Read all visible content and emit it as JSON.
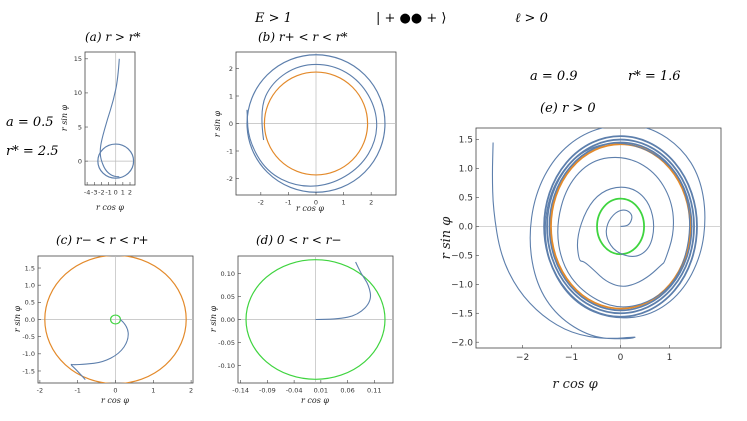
{
  "header": {
    "energy": "E > 1",
    "signature": "| + ●● + ⟩",
    "angular_momentum": "ℓ > 0"
  },
  "left_params": {
    "a": "a = 0.5",
    "r_star": "r* = 2.5"
  },
  "right_params": {
    "a": "a = 0.9",
    "r_star": "r* = 1.6"
  },
  "colors": {
    "trajectory": "#5d7fac",
    "outer_horizon": "#e38a2b",
    "inner_horizon": "#3fd43f",
    "axis": "#bbbbbb"
  },
  "chart_data": [
    {
      "id": "a",
      "type": "line",
      "title": "(a)    r > r*",
      "xlabel": "r cos φ",
      "ylabel": "r sin φ",
      "xlim": [
        -4.3,
        2.7
      ],
      "ylim": [
        -3.5,
        16
      ],
      "xticks": [
        -4,
        -3,
        -2,
        -1,
        0,
        1,
        2
      ],
      "xtick_labels": [
        "-4",
        "-3",
        "-2",
        "-1",
        "0",
        "1",
        "2"
      ],
      "yticks": [
        0,
        5,
        10,
        15
      ],
      "ytick_labels": [
        "0",
        "5",
        "10",
        "15"
      ],
      "circles": [
        {
          "r": 2.5,
          "role": "trajectory"
        }
      ],
      "series": [
        {
          "role": "trajectory",
          "points": [
            [
              0.5,
              15
            ],
            [
              0.3,
              12
            ],
            [
              -0.3,
              9
            ],
            [
              -1.2,
              6
            ],
            [
              -2,
              3
            ],
            [
              -2.2,
              1.5
            ],
            [
              -2.1,
              0.3
            ],
            [
              -1.5,
              -1.3
            ],
            [
              -0.5,
              -2.2
            ],
            [
              0.5,
              -2.3
            ]
          ]
        }
      ]
    },
    {
      "id": "b",
      "type": "line",
      "title": "(b)    r+ < r < r*",
      "xlabel": "r cos φ",
      "ylabel": "r sin φ",
      "xlim": [
        -2.9,
        2.9
      ],
      "ylim": [
        -2.6,
        2.6
      ],
      "xticks": [
        -2,
        -1,
        0,
        1,
        2
      ],
      "xtick_labels": [
        "-2",
        "-1",
        "0",
        "1",
        "2"
      ],
      "yticks": [
        -2,
        -1,
        0,
        1,
        2
      ],
      "ytick_labels": [
        "-2",
        "-1",
        "0",
        "1",
        "2"
      ],
      "circles": [
        {
          "r": 2.5,
          "role": "trajectory"
        },
        {
          "r": 1.87,
          "role": "outer_horizon"
        }
      ],
      "series": [
        {
          "role": "trajectory",
          "points": [
            [
              -1.9,
              -0.6
            ],
            [
              -2.05,
              0.5
            ],
            [
              -1.6,
              1.5
            ],
            [
              -0.6,
              2.15
            ],
            [
              0.6,
              2.15
            ],
            [
              1.6,
              1.55
            ],
            [
              2.2,
              0.5
            ],
            [
              2.2,
              -0.6
            ],
            [
              1.6,
              -1.6
            ],
            [
              0.5,
              -2.25
            ],
            [
              -0.7,
              -2.3
            ],
            [
              -1.8,
              -1.75
            ],
            [
              -2.45,
              -0.6
            ],
            [
              -2.5,
              0.5
            ]
          ]
        }
      ]
    },
    {
      "id": "c",
      "type": "line",
      "title": "(c)    r− < r < r+",
      "xlabel": "r cos φ",
      "ylabel": "r sin φ",
      "xlim": [
        -2.05,
        2.05
      ],
      "ylim": [
        -1.85,
        1.85
      ],
      "xticks": [
        -2,
        -1,
        0,
        1,
        2
      ],
      "xtick_labels": [
        "-2",
        "-1",
        "0",
        "1",
        "2"
      ],
      "yticks": [
        -1.5,
        -1,
        -0.5,
        0,
        0.5,
        1,
        1.5
      ],
      "ytick_labels": [
        "-1.5",
        "-1.0",
        "-0.5",
        "0.0",
        "0.5",
        "1.0",
        "1.5"
      ],
      "circles": [
        {
          "r": 1.87,
          "role": "outer_horizon"
        },
        {
          "r": 0.13,
          "role": "inner_horizon"
        }
      ],
      "series": [
        {
          "role": "trajectory",
          "points": [
            [
              0.13,
              0
            ],
            [
              0.32,
              -0.18
            ],
            [
              0.35,
              -0.6
            ],
            [
              0.1,
              -1.0
            ],
            [
              -0.35,
              -1.25
            ],
            [
              -0.8,
              -1.3
            ],
            [
              -1.1,
              -1.32
            ],
            [
              -1.2,
              -1.3
            ],
            [
              -1.05,
              -1.45
            ],
            [
              -0.8,
              -1.75
            ]
          ]
        }
      ]
    },
    {
      "id": "d",
      "type": "line",
      "title": "(d)    0 < r < r−",
      "xlabel": "r cos φ",
      "ylabel": "r sin φ",
      "xlim": [
        -0.145,
        0.145
      ],
      "ylim": [
        -0.138,
        0.138
      ],
      "xticks": [
        -0.14,
        -0.09,
        -0.04,
        0.01,
        0.06,
        0.11
      ],
      "xtick_labels": [
        "-0.14",
        "-0.09",
        "-0.04",
        "0.01",
        "0.06",
        "0.11"
      ],
      "yticks": [
        -0.1,
        -0.05,
        0,
        0.05,
        0.1
      ],
      "ytick_labels": [
        "-0.10",
        "-0.05",
        "0.00",
        "0.05",
        "0.10"
      ],
      "circles": [
        {
          "r": 0.13,
          "role": "inner_horizon"
        }
      ],
      "series": [
        {
          "role": "trajectory",
          "points": [
            [
              0,
              0
            ],
            [
              0.04,
              0
            ],
            [
              0.08,
              0.01
            ],
            [
              0.105,
              0.04
            ],
            [
              0.1,
              0.075
            ],
            [
              0.085,
              0.1
            ],
            [
              0.075,
              0.125
            ]
          ]
        }
      ]
    },
    {
      "id": "e",
      "type": "line",
      "title": "(e)    r > 0",
      "xlabel": "r cos φ",
      "ylabel": "r sin φ",
      "xlim": [
        -2.95,
        2.05
      ],
      "ylim": [
        -2.1,
        1.7
      ],
      "xticks": [
        -2,
        -1,
        0,
        1
      ],
      "xtick_labels": [
        "−2",
        "−1",
        "0",
        "1"
      ],
      "yticks": [
        -2,
        -1.5,
        -1,
        -0.5,
        0,
        0.5,
        1,
        1.5
      ],
      "ytick_labels": [
        "−2.0",
        "−1.5",
        "−1.0",
        "−0.5",
        "0.0",
        "0.5",
        "1.0",
        "1.5"
      ],
      "circles": [
        {
          "r": 1.56,
          "role": "trajectory"
        },
        {
          "r": 1.5,
          "role": "trajectory"
        },
        {
          "r": 1.45,
          "role": "trajectory"
        },
        {
          "r": 1.42,
          "role": "outer_horizon"
        },
        {
          "r": 0.48,
          "role": "inner_horizon"
        }
      ],
      "series": [
        {
          "role": "trajectory",
          "points": [
            [
              0,
              0
            ],
            [
              0.1,
              0
            ],
            [
              0.2,
              0.05
            ],
            [
              0.25,
              0.2
            ],
            [
              0.1,
              0.3
            ],
            [
              -0.1,
              0.25
            ],
            [
              -0.28,
              0.05
            ],
            [
              -0.3,
              -0.2
            ],
            [
              -0.1,
              -0.45
            ],
            [
              0.3,
              -0.55
            ],
            [
              0.6,
              -0.38
            ],
            [
              0.7,
              0
            ],
            [
              0.6,
              0.38
            ],
            [
              0.35,
              0.62
            ],
            [
              0,
              0.7
            ],
            [
              -0.4,
              0.6
            ],
            [
              -0.7,
              0.3
            ],
            [
              -0.9,
              -0.2
            ],
            [
              -0.85,
              -0.6
            ],
            [
              -0.75,
              -0.6
            ],
            [
              -0.55,
              -0.75
            ],
            [
              -0.3,
              -0.95
            ],
            [
              0,
              -1.05
            ],
            [
              0.3,
              -1.0
            ],
            [
              0.6,
              -0.85
            ],
            [
              0.85,
              -0.65
            ],
            [
              0.9,
              -0.62
            ],
            [
              1.1,
              -0.1
            ],
            [
              1.05,
              0.45
            ],
            [
              0.7,
              0.95
            ],
            [
              0.1,
              1.22
            ],
            [
              -0.6,
              1.15
            ],
            [
              -1.1,
              0.7
            ],
            [
              -1.32,
              0
            ],
            [
              -1.2,
              -0.65
            ],
            [
              -0.8,
              -1.12
            ],
            [
              -0.15,
              -1.42
            ],
            [
              0.5,
              -1.35
            ],
            [
              1.1,
              -1.0
            ],
            [
              1.4,
              -0.35
            ],
            [
              1.42,
              0.35
            ],
            [
              1.15,
              0.95
            ],
            [
              0.55,
              1.35
            ],
            [
              -0.2,
              1.48
            ],
            [
              -0.9,
              1.25
            ],
            [
              -1.4,
              0.7
            ],
            [
              -1.58,
              -0.05
            ],
            [
              -1.4,
              -0.8
            ],
            [
              -0.9,
              -1.35
            ],
            [
              -0.2,
              -1.6
            ],
            [
              0.6,
              -1.55
            ],
            [
              1.25,
              -1.15
            ],
            [
              1.65,
              -0.5
            ],
            [
              1.75,
              0.2
            ],
            [
              1.62,
              0.85
            ],
            [
              1.25,
              1.35
            ],
            [
              0.65,
              1.7
            ],
            [
              0,
              1.78
            ],
            [
              -0.75,
              1.62
            ],
            [
              -1.35,
              1.2
            ],
            [
              -1.75,
              0.55
            ],
            [
              -1.88,
              -0.25
            ],
            [
              -1.72,
              -1.0
            ],
            [
              -1.3,
              -1.55
            ],
            [
              -0.6,
              -1.92
            ],
            [
              0.1,
              -1.95
            ],
            [
              0.4,
              -1.9
            ],
            [
              -0.3,
              -1.95
            ],
            [
              -1.0,
              -1.85
            ],
            [
              -1.6,
              -1.55
            ],
            [
              -2.1,
              -1.1
            ],
            [
              -2.45,
              -0.5
            ],
            [
              -2.6,
              0.3
            ],
            [
              -2.62,
              0.9
            ],
            [
              -2.6,
              1.45
            ]
          ]
        }
      ]
    }
  ]
}
